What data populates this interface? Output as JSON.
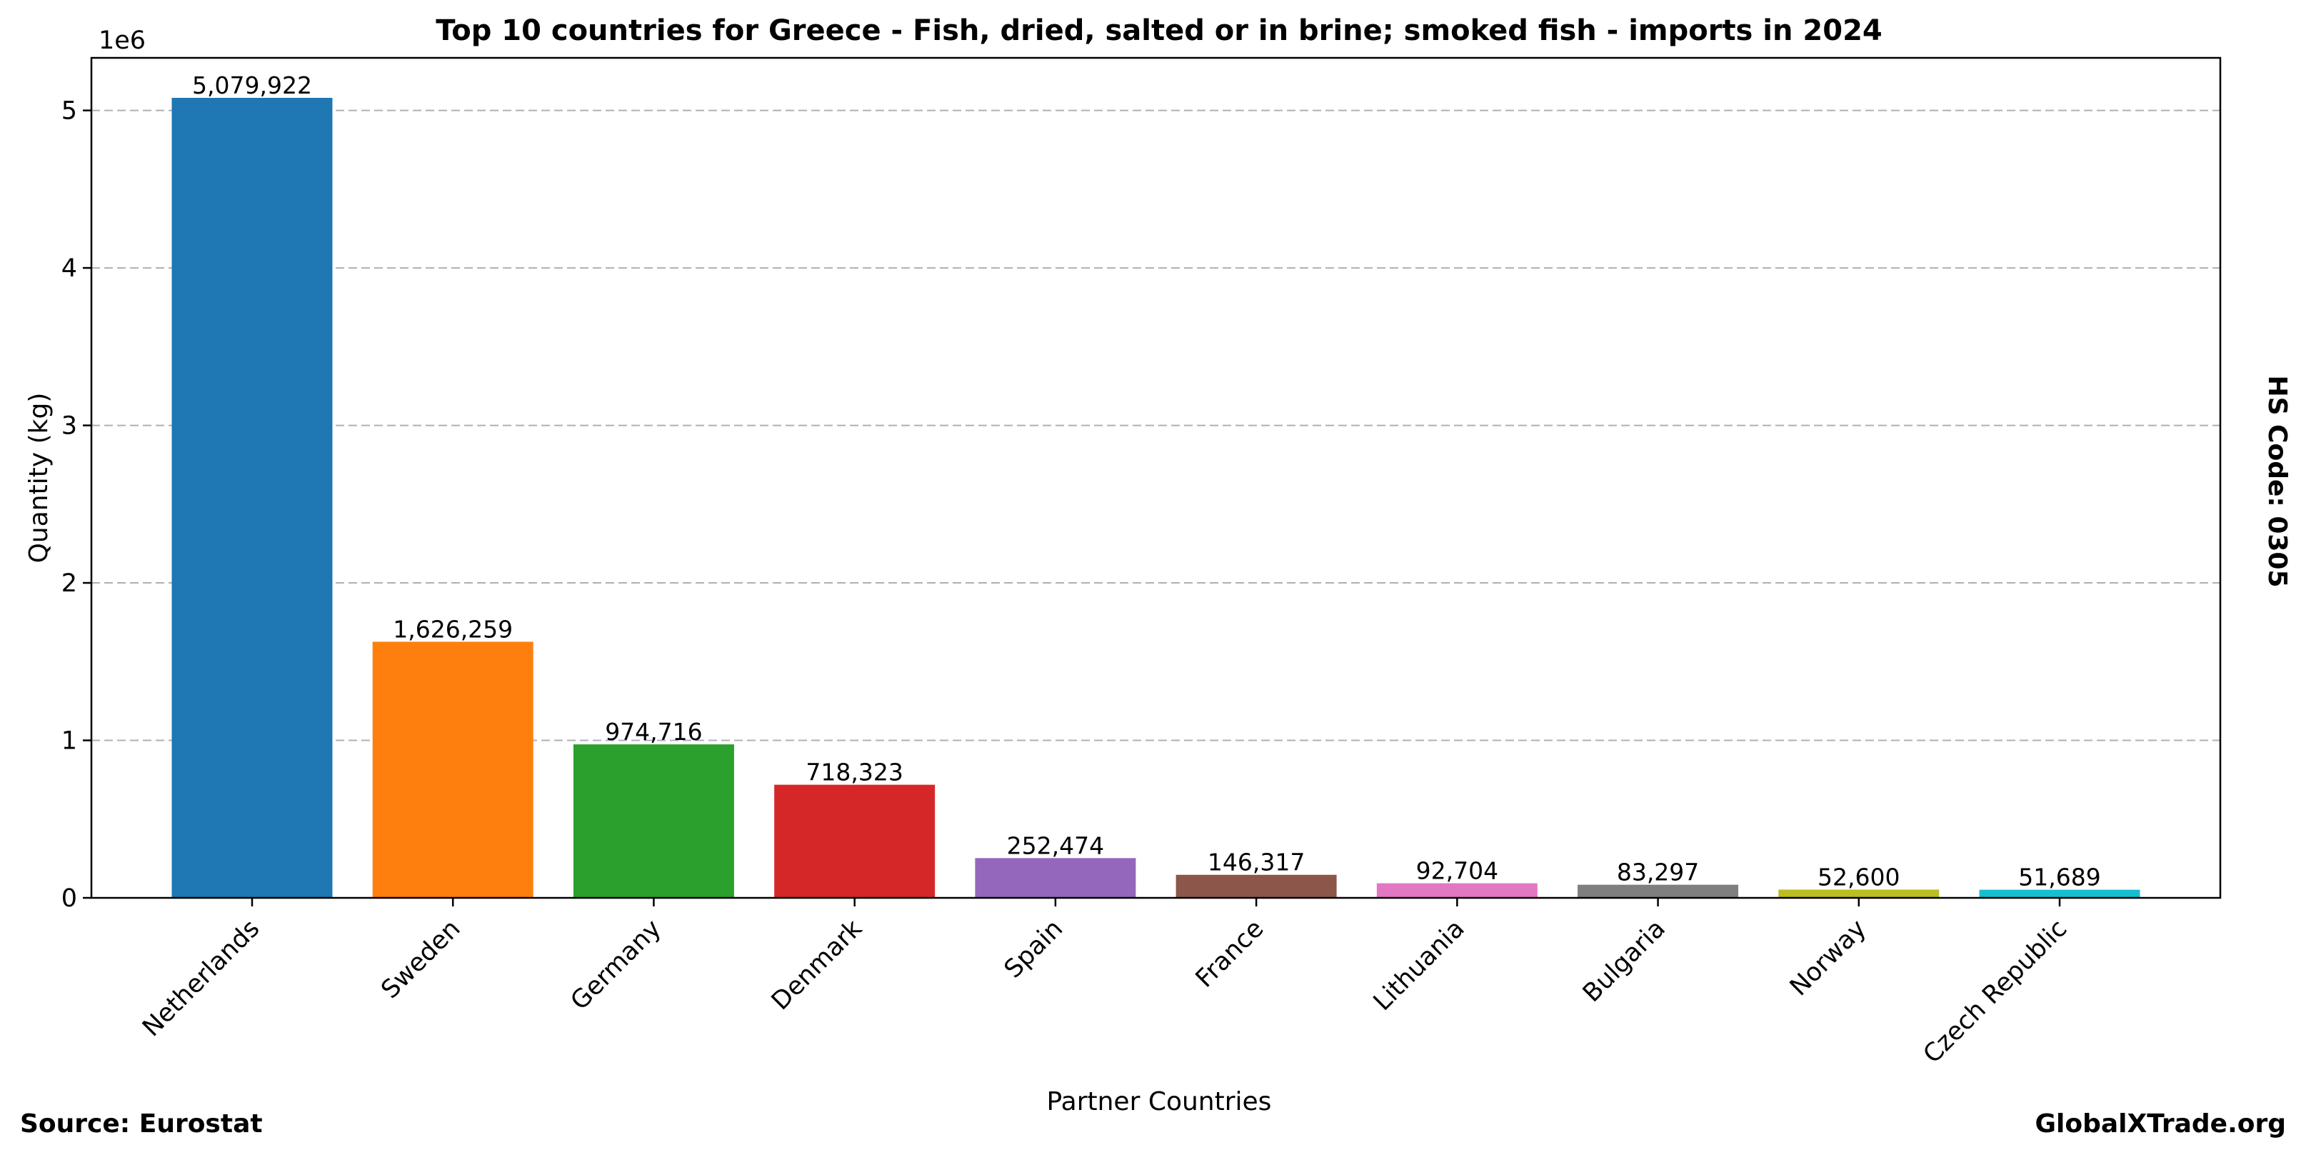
{
  "chart_data": {
    "type": "bar",
    "title": "Top 10 countries for Greece - Fish, dried, salted or in brine; smoked fish - imports in 2024",
    "xlabel": "Partner Countries",
    "ylabel": "Quantity (kg)",
    "y_scale_label": "1e6",
    "categories": [
      "Netherlands",
      "Sweden",
      "Germany",
      "Denmark",
      "Spain",
      "France",
      "Lithuania",
      "Bulgaria",
      "Norway",
      "Czech Republic"
    ],
    "values": [
      5079922,
      1626259,
      974716,
      718323,
      252474,
      146317,
      92704,
      83297,
      52600,
      51689
    ],
    "value_labels": [
      "5,079,922",
      "1,626,259",
      "974,716",
      "718,323",
      "252,474",
      "146,317",
      "92,704",
      "83,297",
      "52,600",
      "51,689"
    ],
    "colors": [
      "#1f77b4",
      "#ff7f0e",
      "#2ca02c",
      "#d62728",
      "#9467bd",
      "#8c564b",
      "#e377c2",
      "#7f7f7f",
      "#bcbd22",
      "#17becf"
    ],
    "ylim": [
      0,
      5333918
    ],
    "yticks": [
      0,
      1000000,
      2000000,
      3000000,
      4000000,
      5000000
    ],
    "ytick_labels": [
      "0",
      "1",
      "2",
      "3",
      "4",
      "5"
    ],
    "grid": "horizontal dashed",
    "side_label": "HS Code: 0305"
  },
  "footer": {
    "source": "Source: Eurostat",
    "site": "GlobalXTrade.org"
  }
}
